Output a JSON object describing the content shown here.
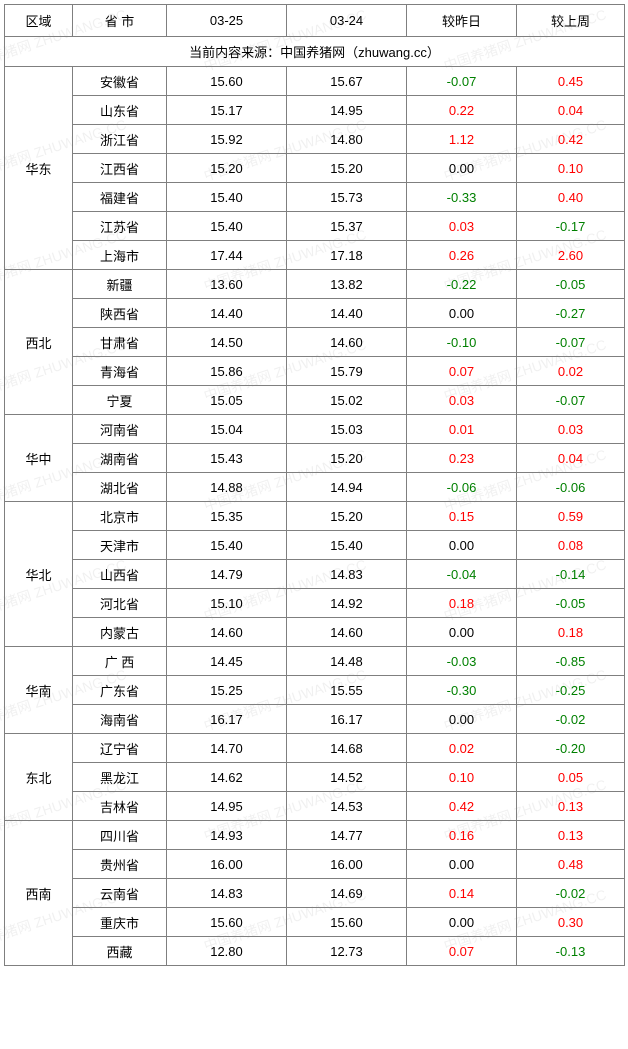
{
  "colors": {
    "text": "#000000",
    "positive": "#ff0000",
    "negative": "#008000",
    "zero": "#000000",
    "border": "#7f7f7f",
    "watermark": "rgba(0,0,0,0.06)"
  },
  "headers": {
    "region": "区域",
    "province": "省 市",
    "date1": "03-25",
    "date2": "03-24",
    "vs_yesterday": "较昨日",
    "vs_lastweek": "较上周"
  },
  "source_line": "当前内容来源：中国养猪网（zhuwang.cc）",
  "watermark_text": "中国养猪网  ZHUWANG.CC",
  "regions": [
    {
      "name": "华东",
      "rows": [
        {
          "prov": "安徽省",
          "d1": "15.60",
          "d2": "15.67",
          "dd": "-0.07",
          "dw": "0.45"
        },
        {
          "prov": "山东省",
          "d1": "15.17",
          "d2": "14.95",
          "dd": "0.22",
          "dw": "0.04"
        },
        {
          "prov": "浙江省",
          "d1": "15.92",
          "d2": "14.80",
          "dd": "1.12",
          "dw": "0.42"
        },
        {
          "prov": "江西省",
          "d1": "15.20",
          "d2": "15.20",
          "dd": "0.00",
          "dw": "0.10"
        },
        {
          "prov": "福建省",
          "d1": "15.40",
          "d2": "15.73",
          "dd": "-0.33",
          "dw": "0.40"
        },
        {
          "prov": "江苏省",
          "d1": "15.40",
          "d2": "15.37",
          "dd": "0.03",
          "dw": "-0.17"
        },
        {
          "prov": "上海市",
          "d1": "17.44",
          "d2": "17.18",
          "dd": "0.26",
          "dw": "2.60"
        }
      ]
    },
    {
      "name": "西北",
      "rows": [
        {
          "prov": "新疆",
          "d1": "13.60",
          "d2": "13.82",
          "dd": "-0.22",
          "dw": "-0.05"
        },
        {
          "prov": "陕西省",
          "d1": "14.40",
          "d2": "14.40",
          "dd": "0.00",
          "dw": "-0.27"
        },
        {
          "prov": "甘肃省",
          "d1": "14.50",
          "d2": "14.60",
          "dd": "-0.10",
          "dw": "-0.07"
        },
        {
          "prov": "青海省",
          "d1": "15.86",
          "d2": "15.79",
          "dd": "0.07",
          "dw": "0.02"
        },
        {
          "prov": "宁夏",
          "d1": "15.05",
          "d2": "15.02",
          "dd": "0.03",
          "dw": "-0.07"
        }
      ]
    },
    {
      "name": "华中",
      "rows": [
        {
          "prov": "河南省",
          "d1": "15.04",
          "d2": "15.03",
          "dd": "0.01",
          "dw": "0.03"
        },
        {
          "prov": "湖南省",
          "d1": "15.43",
          "d2": "15.20",
          "dd": "0.23",
          "dw": "0.04"
        },
        {
          "prov": "湖北省",
          "d1": "14.88",
          "d2": "14.94",
          "dd": "-0.06",
          "dw": "-0.06"
        }
      ]
    },
    {
      "name": "华北",
      "rows": [
        {
          "prov": "北京市",
          "d1": "15.35",
          "d2": "15.20",
          "dd": "0.15",
          "dw": "0.59"
        },
        {
          "prov": "天津市",
          "d1": "15.40",
          "d2": "15.40",
          "dd": "0.00",
          "dw": "0.08"
        },
        {
          "prov": "山西省",
          "d1": "14.79",
          "d2": "14.83",
          "dd": "-0.04",
          "dw": "-0.14"
        },
        {
          "prov": "河北省",
          "d1": "15.10",
          "d2": "14.92",
          "dd": "0.18",
          "dw": "-0.05"
        },
        {
          "prov": "内蒙古",
          "d1": "14.60",
          "d2": "14.60",
          "dd": "0.00",
          "dw": "0.18"
        }
      ]
    },
    {
      "name": "华南",
      "rows": [
        {
          "prov": "广 西",
          "d1": "14.45",
          "d2": "14.48",
          "dd": "-0.03",
          "dw": "-0.85"
        },
        {
          "prov": "广东省",
          "d1": "15.25",
          "d2": "15.55",
          "dd": "-0.30",
          "dw": "-0.25"
        },
        {
          "prov": "海南省",
          "d1": "16.17",
          "d2": "16.17",
          "dd": "0.00",
          "dw": "-0.02"
        }
      ]
    },
    {
      "name": "东北",
      "rows": [
        {
          "prov": "辽宁省",
          "d1": "14.70",
          "d2": "14.68",
          "dd": "0.02",
          "dw": "-0.20"
        },
        {
          "prov": "黑龙江",
          "d1": "14.62",
          "d2": "14.52",
          "dd": "0.10",
          "dw": "0.05"
        },
        {
          "prov": "吉林省",
          "d1": "14.95",
          "d2": "14.53",
          "dd": "0.42",
          "dw": "0.13"
        }
      ]
    },
    {
      "name": "西南",
      "rows": [
        {
          "prov": "四川省",
          "d1": "14.93",
          "d2": "14.77",
          "dd": "0.16",
          "dw": "0.13"
        },
        {
          "prov": "贵州省",
          "d1": "16.00",
          "d2": "16.00",
          "dd": "0.00",
          "dw": "0.48"
        },
        {
          "prov": "云南省",
          "d1": "14.83",
          "d2": "14.69",
          "dd": "0.14",
          "dw": "-0.02"
        },
        {
          "prov": "重庆市",
          "d1": "15.60",
          "d2": "15.60",
          "dd": "0.00",
          "dw": "0.30"
        },
        {
          "prov": "西藏",
          "d1": "12.80",
          "d2": "12.73",
          "dd": "0.07",
          "dw": "-0.13"
        }
      ]
    }
  ]
}
